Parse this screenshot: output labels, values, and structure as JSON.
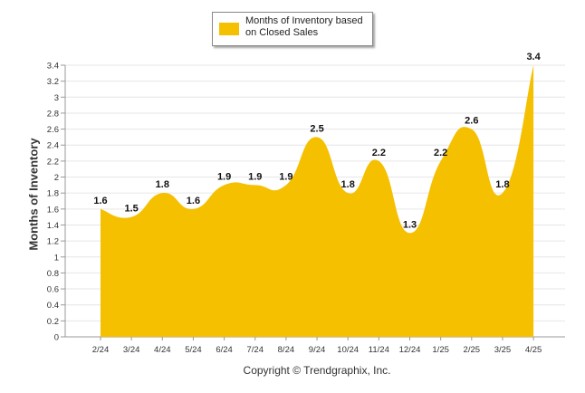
{
  "chart_data": {
    "type": "area",
    "legend": {
      "label": "Months of Inventory based on Closed Sales",
      "position": "top-center"
    },
    "ylabel": "Months of Inventory",
    "xlabel": "",
    "categories": [
      "2/24",
      "3/24",
      "4/24",
      "5/24",
      "6/24",
      "7/24",
      "8/24",
      "9/24",
      "10/24",
      "11/24",
      "12/24",
      "1/25",
      "2/25",
      "3/25",
      "4/25"
    ],
    "series": [
      {
        "name": "Months of Inventory based on Closed Sales",
        "values": [
          1.6,
          1.5,
          1.8,
          1.6,
          1.9,
          1.9,
          1.9,
          2.5,
          1.8,
          2.2,
          1.3,
          2.2,
          2.6,
          1.8,
          3.4
        ],
        "labels": [
          "1.6",
          "1.5",
          "1.8",
          "1.6",
          "1.9",
          "1.9",
          "1.9",
          "2.5",
          "1.8",
          "2.2",
          "1.3",
          "2.2",
          "2.6",
          "1.8",
          "3.4"
        ]
      }
    ],
    "ylim": [
      0,
      3.4
    ],
    "yticks": [
      "0",
      "0.2",
      "0.4",
      "0.6",
      "0.8",
      "1",
      "1.2",
      "1.4",
      "1.6",
      "1.8",
      "2",
      "2.2",
      "2.4",
      "2.6",
      "2.8",
      "3",
      "3.2",
      "3.4"
    ],
    "grid": true,
    "color": "#F5C000"
  },
  "footer": {
    "copyright": "Copyright © Trendgraphix, Inc."
  }
}
